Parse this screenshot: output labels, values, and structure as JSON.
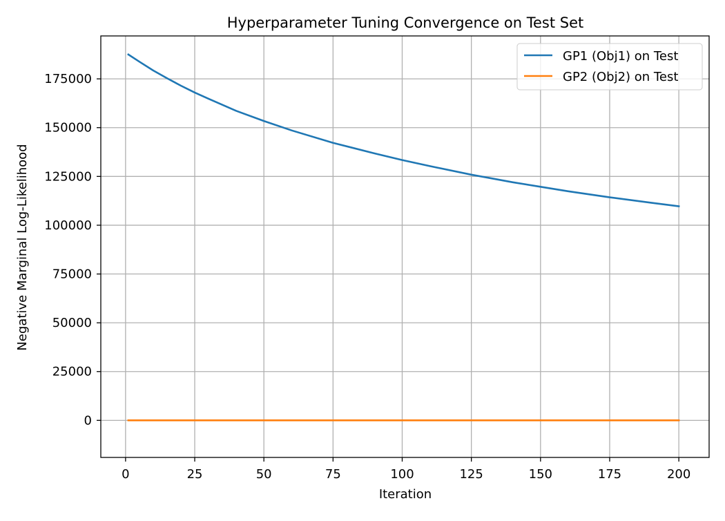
{
  "chart_data": {
    "type": "line",
    "title": "Hyperparameter Tuning Convergence on Test Set",
    "xlabel": "Iteration",
    "ylabel": "Negative Marginal Log-Likelihood",
    "xlim": [
      -8.95,
      210.95
    ],
    "ylim": [
      -19000,
      197000
    ],
    "x_ticks": [
      0,
      25,
      50,
      75,
      100,
      125,
      150,
      175,
      200
    ],
    "y_ticks": [
      0,
      25000,
      50000,
      75000,
      100000,
      125000,
      150000,
      175000
    ],
    "grid": true,
    "legend_position": "top-right",
    "series": [
      {
        "name": "GP1 (Obj1) on Test",
        "color": "#1f77b4",
        "x": [
          1,
          5,
          10,
          15,
          20,
          25,
          30,
          40,
          50,
          60,
          75,
          90,
          100,
          110,
          125,
          130,
          140,
          150,
          160,
          175,
          190,
          200
        ],
        "values": [
          187500,
          183800,
          179300,
          175300,
          171500,
          168000,
          164800,
          158600,
          153400,
          148600,
          142200,
          136800,
          133400,
          130300,
          125900,
          124600,
          122000,
          119700,
          117400,
          114300,
          111500,
          109700
        ]
      },
      {
        "name": "GP2 (Obj2) on Test",
        "color": "#ff7f0e",
        "x": [
          1,
          200
        ],
        "values": [
          0,
          0
        ]
      }
    ]
  }
}
